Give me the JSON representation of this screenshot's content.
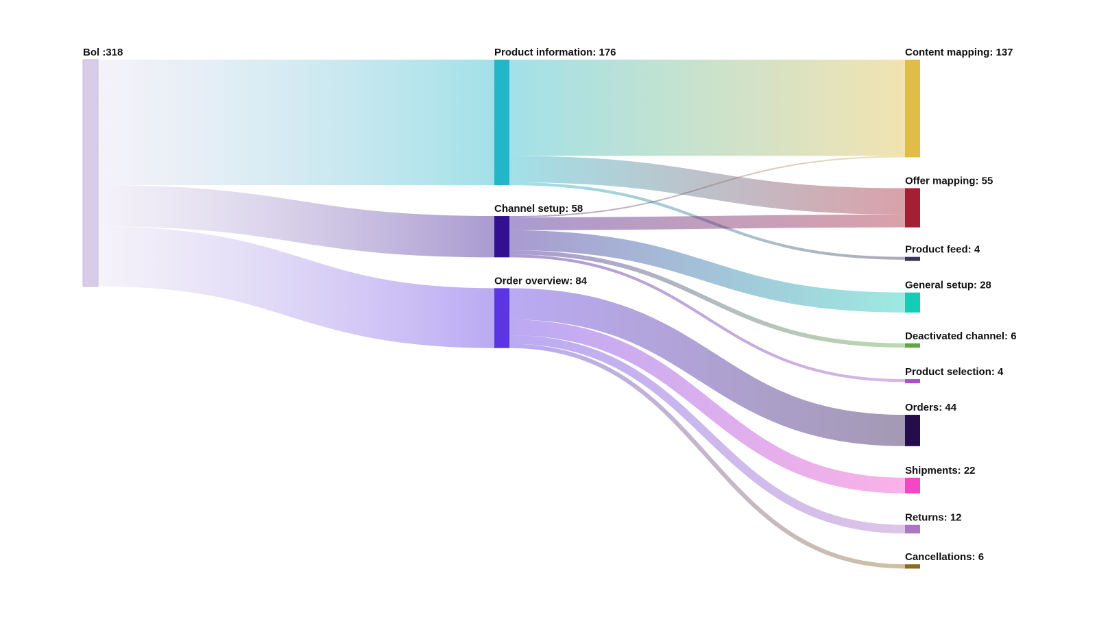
{
  "chart_data": {
    "type": "sankey",
    "title": "",
    "nodes": [
      {
        "id": "bol",
        "name": "Bol",
        "label": "Bol :318",
        "value": 318,
        "color": "#d8cce9",
        "column": 0
      },
      {
        "id": "product_information",
        "name": "Product information",
        "label": "Product information: 176",
        "value": 176,
        "color": "#22b6c8",
        "column": 1
      },
      {
        "id": "channel_setup",
        "name": "Channel setup",
        "label": "Channel setup: 58",
        "value": 58,
        "color": "#33108f",
        "column": 1
      },
      {
        "id": "order_overview",
        "name": "Order overview",
        "label": "Order overview: 84",
        "value": 84,
        "color": "#5b35e2",
        "column": 1
      },
      {
        "id": "content_mapping",
        "name": "Content mapping",
        "label": "Content mapping: 137",
        "value": 137,
        "color": "#dfbd46",
        "column": 2
      },
      {
        "id": "offer_mapping",
        "name": "Offer mapping",
        "label": "Offer mapping: 55",
        "value": 55,
        "color": "#a51f34",
        "column": 2
      },
      {
        "id": "product_feed",
        "name": "Product feed",
        "label": "Product feed: 4",
        "value": 4,
        "color": "#3d3559",
        "column": 2
      },
      {
        "id": "general_setup",
        "name": "General setup",
        "label": "General setup: 28",
        "value": 28,
        "color": "#15cdb7",
        "column": 2
      },
      {
        "id": "deactivated_channel",
        "name": "Deactivated channel",
        "label": "Deactivated channel: 6",
        "value": 6,
        "color": "#5ea83e",
        "column": 2
      },
      {
        "id": "product_selection",
        "name": "Product selection",
        "label": "Product selection: 4",
        "value": 4,
        "color": "#a556c4",
        "column": 2
      },
      {
        "id": "orders",
        "name": "Orders",
        "label": "Orders: 44",
        "value": 44,
        "color": "#250c4b",
        "column": 2
      },
      {
        "id": "shipments",
        "name": "Shipments",
        "label": "Shipments: 22",
        "value": 22,
        "color": "#f447c8",
        "column": 2
      },
      {
        "id": "returns",
        "name": "Returns",
        "label": "Returns: 12",
        "value": 12,
        "color": "#ad76c4",
        "column": 2
      },
      {
        "id": "cancellations",
        "name": "Cancellations",
        "label": "Cancellations: 6",
        "value": 6,
        "color": "#8a6c1e",
        "column": 2
      }
    ],
    "links": [
      {
        "source": "bol",
        "target": "product_information",
        "value": 176
      },
      {
        "source": "bol",
        "target": "channel_setup",
        "value": 58
      },
      {
        "source": "bol",
        "target": "order_overview",
        "value": 84
      },
      {
        "source": "product_information",
        "target": "content_mapping",
        "value": 135
      },
      {
        "source": "product_information",
        "target": "offer_mapping",
        "value": 37
      },
      {
        "source": "product_information",
        "target": "product_feed",
        "value": 4
      },
      {
        "source": "channel_setup",
        "target": "content_mapping",
        "value": 2
      },
      {
        "source": "channel_setup",
        "target": "offer_mapping",
        "value": 18
      },
      {
        "source": "channel_setup",
        "target": "general_setup",
        "value": 28
      },
      {
        "source": "channel_setup",
        "target": "deactivated_channel",
        "value": 6
      },
      {
        "source": "channel_setup",
        "target": "product_selection",
        "value": 4
      },
      {
        "source": "order_overview",
        "target": "orders",
        "value": 44
      },
      {
        "source": "order_overview",
        "target": "shipments",
        "value": 22
      },
      {
        "source": "order_overview",
        "target": "returns",
        "value": 12
      },
      {
        "source": "order_overview",
        "target": "cancellations",
        "value": 6
      }
    ]
  }
}
